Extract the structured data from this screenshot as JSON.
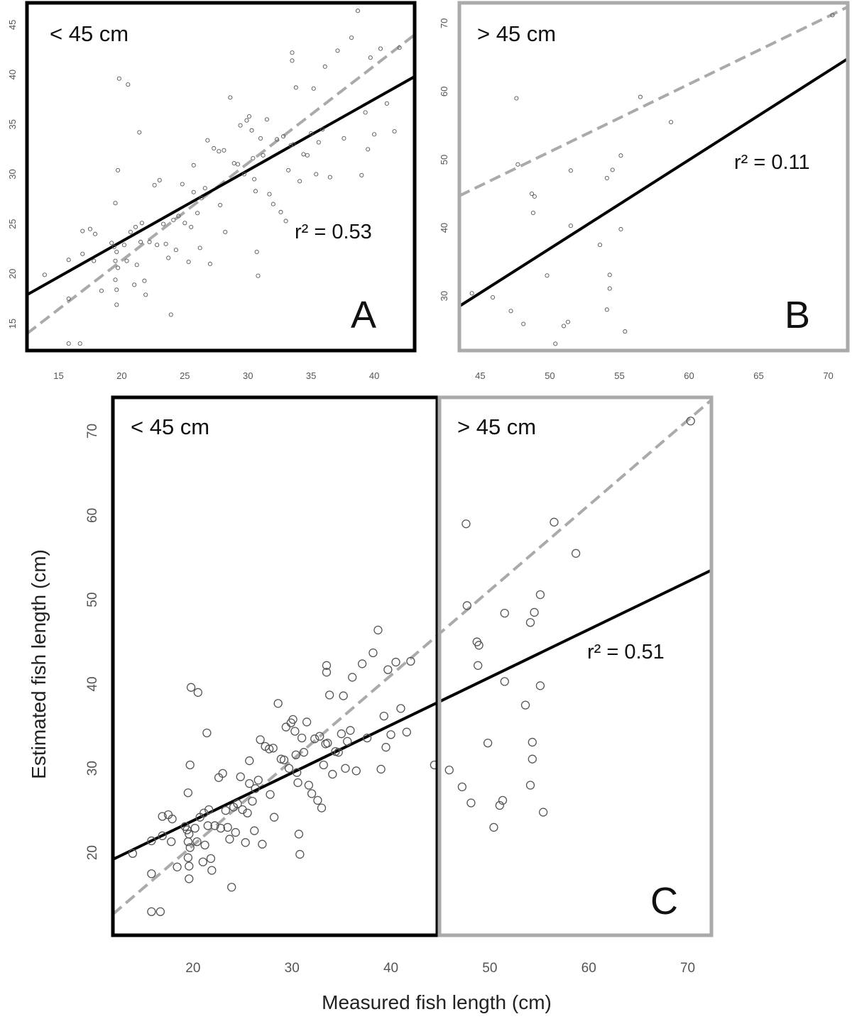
{
  "chart_data": [
    {
      "panel": "A",
      "type": "scatter",
      "annotation_region": "< 45 cm",
      "r_squared_label": "r² = 0.53",
      "xlim": [
        12.5,
        43.2
      ],
      "ylim": [
        12.3,
        47.2
      ],
      "xticks": [
        15,
        20,
        25,
        30,
        35,
        40
      ],
      "yticks": [
        15,
        20,
        25,
        30,
        35,
        40,
        45
      ],
      "frame_color": "#000000",
      "regression_line": {
        "color": "#000000",
        "style": "solid",
        "from": [
          12.5,
          17.9
        ],
        "to": [
          43.2,
          39.8
        ]
      },
      "one_to_one_line": {
        "color": "#aaaaaa",
        "style": "dashed",
        "from": [
          12.5,
          14.0
        ],
        "to": [
          43.2,
          44.0
        ]
      },
      "points": [
        [
          13.9,
          19.9
        ],
        [
          15.8,
          21.4
        ],
        [
          15.8,
          17.5
        ],
        [
          15.8,
          13.0
        ],
        [
          16.7,
          13.0
        ],
        [
          16.9,
          22.0
        ],
        [
          16.9,
          24.3
        ],
        [
          17.5,
          24.5
        ],
        [
          17.9,
          24.0
        ],
        [
          17.8,
          21.3
        ],
        [
          18.4,
          18.3
        ],
        [
          19.2,
          23.1
        ],
        [
          19.4,
          22.7
        ],
        [
          19.5,
          21.3
        ],
        [
          19.6,
          22.2
        ],
        [
          19.7,
          20.6
        ],
        [
          19.5,
          19.4
        ],
        [
          19.6,
          18.4
        ],
        [
          19.6,
          16.9
        ],
        [
          19.5,
          27.1
        ],
        [
          19.7,
          30.4
        ],
        [
          19.8,
          39.6
        ],
        [
          20.2,
          22.9
        ],
        [
          20.4,
          21.3
        ],
        [
          20.5,
          39.0
        ],
        [
          20.7,
          24.2
        ],
        [
          21.0,
          18.9
        ],
        [
          21.1,
          24.7
        ],
        [
          21.2,
          20.9
        ],
        [
          21.4,
          34.2
        ],
        [
          21.6,
          25.1
        ],
        [
          21.5,
          23.2
        ],
        [
          21.8,
          19.3
        ],
        [
          21.9,
          17.9
        ],
        [
          22.2,
          23.2
        ],
        [
          22.6,
          28.9
        ],
        [
          22.8,
          22.9
        ],
        [
          23.0,
          29.4
        ],
        [
          23.5,
          23.0
        ],
        [
          23.3,
          25.0
        ],
        [
          23.7,
          21.6
        ],
        [
          23.9,
          15.9
        ],
        [
          24.1,
          25.4
        ],
        [
          24.3,
          22.4
        ],
        [
          24.5,
          25.8
        ],
        [
          24.8,
          29.0
        ],
        [
          25.0,
          25.1
        ],
        [
          25.3,
          21.2
        ],
        [
          25.5,
          24.7
        ],
        [
          25.7,
          30.9
        ],
        [
          25.7,
          28.2
        ],
        [
          26.0,
          26.1
        ],
        [
          26.2,
          22.6
        ],
        [
          26.3,
          27.6
        ],
        [
          26.6,
          28.6
        ],
        [
          26.8,
          33.4
        ],
        [
          27.0,
          21.0
        ],
        [
          27.3,
          32.6
        ],
        [
          27.7,
          32.3
        ],
        [
          27.8,
          26.9
        ],
        [
          28.1,
          32.4
        ],
        [
          28.2,
          24.2
        ],
        [
          28.6,
          37.7
        ],
        [
          28.9,
          31.1
        ],
        [
          29.2,
          31.0
        ],
        [
          29.4,
          34.9
        ],
        [
          29.7,
          30.0
        ],
        [
          29.9,
          35.4
        ],
        [
          30.1,
          35.8
        ],
        [
          30.3,
          34.4
        ],
        [
          30.4,
          31.6
        ],
        [
          30.5,
          29.5
        ],
        [
          30.6,
          28.3
        ],
        [
          30.7,
          22.2
        ],
        [
          30.8,
          19.8
        ],
        [
          31.0,
          33.6
        ],
        [
          31.2,
          31.9
        ],
        [
          31.5,
          35.5
        ],
        [
          31.7,
          28.0
        ],
        [
          32.0,
          27.0
        ],
        [
          32.3,
          33.5
        ],
        [
          32.6,
          26.2
        ],
        [
          32.8,
          33.8
        ],
        [
          33.0,
          25.3
        ],
        [
          33.2,
          30.4
        ],
        [
          33.4,
          32.9
        ],
        [
          33.5,
          42.2
        ],
        [
          33.5,
          41.4
        ],
        [
          33.6,
          33.0
        ],
        [
          33.8,
          38.7
        ],
        [
          34.1,
          29.3
        ],
        [
          34.4,
          32.0
        ],
        [
          34.7,
          31.9
        ],
        [
          35.0,
          34.1
        ],
        [
          35.2,
          38.6
        ],
        [
          35.4,
          30.0
        ],
        [
          35.6,
          33.2
        ],
        [
          35.9,
          34.5
        ],
        [
          36.1,
          40.8
        ],
        [
          36.5,
          29.7
        ],
        [
          37.1,
          42.4
        ],
        [
          37.6,
          33.6
        ],
        [
          38.2,
          43.7
        ],
        [
          38.7,
          46.4
        ],
        [
          39.0,
          29.9
        ],
        [
          39.3,
          36.2
        ],
        [
          39.5,
          32.5
        ],
        [
          39.7,
          41.7
        ],
        [
          40.0,
          34.0
        ],
        [
          40.5,
          42.6
        ],
        [
          41.0,
          37.1
        ],
        [
          41.6,
          34.3
        ],
        [
          42.0,
          42.7
        ]
      ]
    },
    {
      "panel": "B",
      "type": "scatter",
      "annotation_region": "> 45 cm",
      "r_squared_label": "r² = 0.11",
      "xlim": [
        43.5,
        71.4
      ],
      "ylim": [
        22.0,
        73.0
      ],
      "xticks": [
        45,
        50,
        55,
        60,
        65,
        70
      ],
      "yticks": [
        30,
        40,
        50,
        60,
        70
      ],
      "frame_color": "#aaaaaa",
      "regression_line": {
        "color": "#000000",
        "style": "solid",
        "from": [
          43.5,
          28.5
        ],
        "to": [
          71.4,
          64.8
        ]
      },
      "one_to_one_line": {
        "color": "#aaaaaa",
        "style": "dashed",
        "from": [
          43.5,
          44.7
        ],
        "to": [
          71.4,
          72.4
        ]
      },
      "points": [
        [
          44.4,
          30.4
        ],
        [
          45.9,
          29.8
        ],
        [
          47.2,
          27.8
        ],
        [
          47.6,
          59.0
        ],
        [
          47.7,
          49.3
        ],
        [
          48.1,
          25.9
        ],
        [
          48.7,
          45.0
        ],
        [
          48.8,
          42.2
        ],
        [
          48.9,
          44.6
        ],
        [
          49.8,
          33.0
        ],
        [
          50.4,
          23.0
        ],
        [
          51.0,
          25.6
        ],
        [
          51.3,
          26.2
        ],
        [
          51.5,
          48.4
        ],
        [
          51.5,
          40.3
        ],
        [
          53.6,
          37.5
        ],
        [
          54.1,
          28.0
        ],
        [
          54.1,
          47.3
        ],
        [
          54.3,
          33.1
        ],
        [
          54.3,
          31.1
        ],
        [
          54.5,
          48.5
        ],
        [
          55.1,
          39.8
        ],
        [
          55.1,
          50.6
        ],
        [
          55.4,
          24.8
        ],
        [
          56.5,
          59.2
        ],
        [
          58.7,
          55.5
        ],
        [
          70.3,
          71.2
        ]
      ]
    },
    {
      "panel": "C",
      "type": "scatter",
      "xlabel": "Measured fish length (cm)",
      "ylabel": "Estimated fish length (cm)",
      "region_left": "< 45 cm",
      "region_right": "> 45 cm",
      "r_squared_label": "r² = 0.51",
      "xlim": [
        11.9,
        72.4
      ],
      "ylim": [
        10.2,
        74.0
      ],
      "xticks": [
        20,
        30,
        40,
        50,
        60,
        70
      ],
      "yticks": [
        20,
        30,
        40,
        50,
        60,
        70
      ],
      "split_at": 45,
      "regression_line": {
        "color": "#000000",
        "style": "solid",
        "from": [
          11.9,
          19.2
        ],
        "to": [
          72.4,
          53.5
        ]
      },
      "one_to_one_line": {
        "color": "#aaaaaa",
        "style": "dashed",
        "from": [
          11.9,
          12.7
        ],
        "to": [
          72.4,
          73.7
        ]
      },
      "points": [
        [
          13.9,
          19.9
        ],
        [
          15.8,
          21.4
        ],
        [
          15.8,
          17.5
        ],
        [
          15.8,
          13.0
        ],
        [
          16.7,
          13.0
        ],
        [
          16.9,
          22.0
        ],
        [
          16.9,
          24.3
        ],
        [
          17.5,
          24.5
        ],
        [
          17.9,
          24.0
        ],
        [
          17.8,
          21.3
        ],
        [
          18.4,
          18.3
        ],
        [
          19.2,
          23.1
        ],
        [
          19.4,
          22.7
        ],
        [
          19.5,
          21.3
        ],
        [
          19.6,
          22.2
        ],
        [
          19.7,
          20.6
        ],
        [
          19.5,
          19.4
        ],
        [
          19.6,
          18.4
        ],
        [
          19.6,
          16.9
        ],
        [
          19.5,
          27.1
        ],
        [
          19.7,
          30.4
        ],
        [
          19.8,
          39.6
        ],
        [
          20.2,
          22.9
        ],
        [
          20.4,
          21.3
        ],
        [
          20.5,
          39.0
        ],
        [
          20.7,
          24.2
        ],
        [
          21.0,
          18.9
        ],
        [
          21.1,
          24.7
        ],
        [
          21.2,
          20.9
        ],
        [
          21.4,
          34.2
        ],
        [
          21.6,
          25.1
        ],
        [
          21.5,
          23.2
        ],
        [
          21.8,
          19.3
        ],
        [
          21.9,
          17.9
        ],
        [
          22.2,
          23.2
        ],
        [
          22.6,
          28.9
        ],
        [
          22.8,
          22.9
        ],
        [
          23.0,
          29.4
        ],
        [
          23.5,
          23.0
        ],
        [
          23.3,
          25.0
        ],
        [
          23.7,
          21.6
        ],
        [
          23.9,
          15.9
        ],
        [
          24.1,
          25.4
        ],
        [
          24.3,
          22.4
        ],
        [
          24.5,
          25.8
        ],
        [
          24.8,
          29.0
        ],
        [
          25.0,
          25.1
        ],
        [
          25.3,
          21.2
        ],
        [
          25.5,
          24.7
        ],
        [
          25.7,
          30.9
        ],
        [
          25.7,
          28.2
        ],
        [
          26.0,
          26.1
        ],
        [
          26.2,
          22.6
        ],
        [
          26.3,
          27.6
        ],
        [
          26.6,
          28.6
        ],
        [
          26.8,
          33.4
        ],
        [
          27.0,
          21.0
        ],
        [
          27.3,
          32.6
        ],
        [
          27.7,
          32.3
        ],
        [
          27.8,
          26.9
        ],
        [
          28.1,
          32.4
        ],
        [
          28.2,
          24.2
        ],
        [
          28.6,
          37.7
        ],
        [
          28.9,
          31.1
        ],
        [
          29.2,
          31.0
        ],
        [
          29.4,
          34.9
        ],
        [
          29.7,
          30.0
        ],
        [
          29.9,
          35.4
        ],
        [
          30.1,
          35.8
        ],
        [
          30.3,
          34.4
        ],
        [
          30.4,
          31.6
        ],
        [
          30.5,
          29.5
        ],
        [
          30.6,
          28.3
        ],
        [
          30.7,
          22.2
        ],
        [
          30.8,
          19.8
        ],
        [
          31.0,
          33.6
        ],
        [
          31.2,
          31.9
        ],
        [
          31.5,
          35.5
        ],
        [
          31.7,
          28.0
        ],
        [
          32.0,
          27.0
        ],
        [
          32.3,
          33.5
        ],
        [
          32.6,
          26.2
        ],
        [
          32.8,
          33.8
        ],
        [
          33.0,
          25.3
        ],
        [
          33.2,
          30.4
        ],
        [
          33.4,
          32.9
        ],
        [
          33.5,
          42.2
        ],
        [
          33.5,
          41.4
        ],
        [
          33.6,
          33.0
        ],
        [
          33.8,
          38.7
        ],
        [
          34.1,
          29.3
        ],
        [
          34.4,
          32.0
        ],
        [
          34.7,
          31.9
        ],
        [
          35.0,
          34.1
        ],
        [
          35.2,
          38.6
        ],
        [
          35.4,
          30.0
        ],
        [
          35.6,
          33.2
        ],
        [
          35.9,
          34.5
        ],
        [
          36.1,
          40.8
        ],
        [
          36.5,
          29.7
        ],
        [
          37.1,
          42.4
        ],
        [
          37.6,
          33.6
        ],
        [
          38.2,
          43.7
        ],
        [
          38.7,
          46.4
        ],
        [
          39.0,
          29.9
        ],
        [
          39.3,
          36.2
        ],
        [
          39.5,
          32.5
        ],
        [
          39.7,
          41.7
        ],
        [
          40.0,
          34.0
        ],
        [
          40.5,
          42.6
        ],
        [
          41.0,
          37.1
        ],
        [
          41.6,
          34.3
        ],
        [
          42.0,
          42.7
        ],
        [
          44.4,
          30.4
        ],
        [
          45.9,
          29.8
        ],
        [
          47.2,
          27.8
        ],
        [
          47.6,
          59.0
        ],
        [
          47.7,
          49.3
        ],
        [
          48.1,
          25.9
        ],
        [
          48.7,
          45.0
        ],
        [
          48.8,
          42.2
        ],
        [
          48.9,
          44.6
        ],
        [
          49.8,
          33.0
        ],
        [
          50.4,
          23.0
        ],
        [
          51.0,
          25.6
        ],
        [
          51.3,
          26.2
        ],
        [
          51.5,
          48.4
        ],
        [
          51.5,
          40.3
        ],
        [
          53.6,
          37.5
        ],
        [
          54.1,
          28.0
        ],
        [
          54.1,
          47.3
        ],
        [
          54.3,
          33.1
        ],
        [
          54.3,
          31.1
        ],
        [
          54.5,
          48.5
        ],
        [
          55.1,
          39.8
        ],
        [
          55.1,
          50.6
        ],
        [
          55.4,
          24.8
        ],
        [
          56.5,
          59.2
        ],
        [
          58.7,
          55.5
        ],
        [
          70.3,
          71.2
        ]
      ]
    }
  ],
  "panel_letters": [
    "A",
    "B",
    "C"
  ],
  "colors": {
    "black": "#000000",
    "gray": "#aaaaaa",
    "point": "#555555"
  }
}
